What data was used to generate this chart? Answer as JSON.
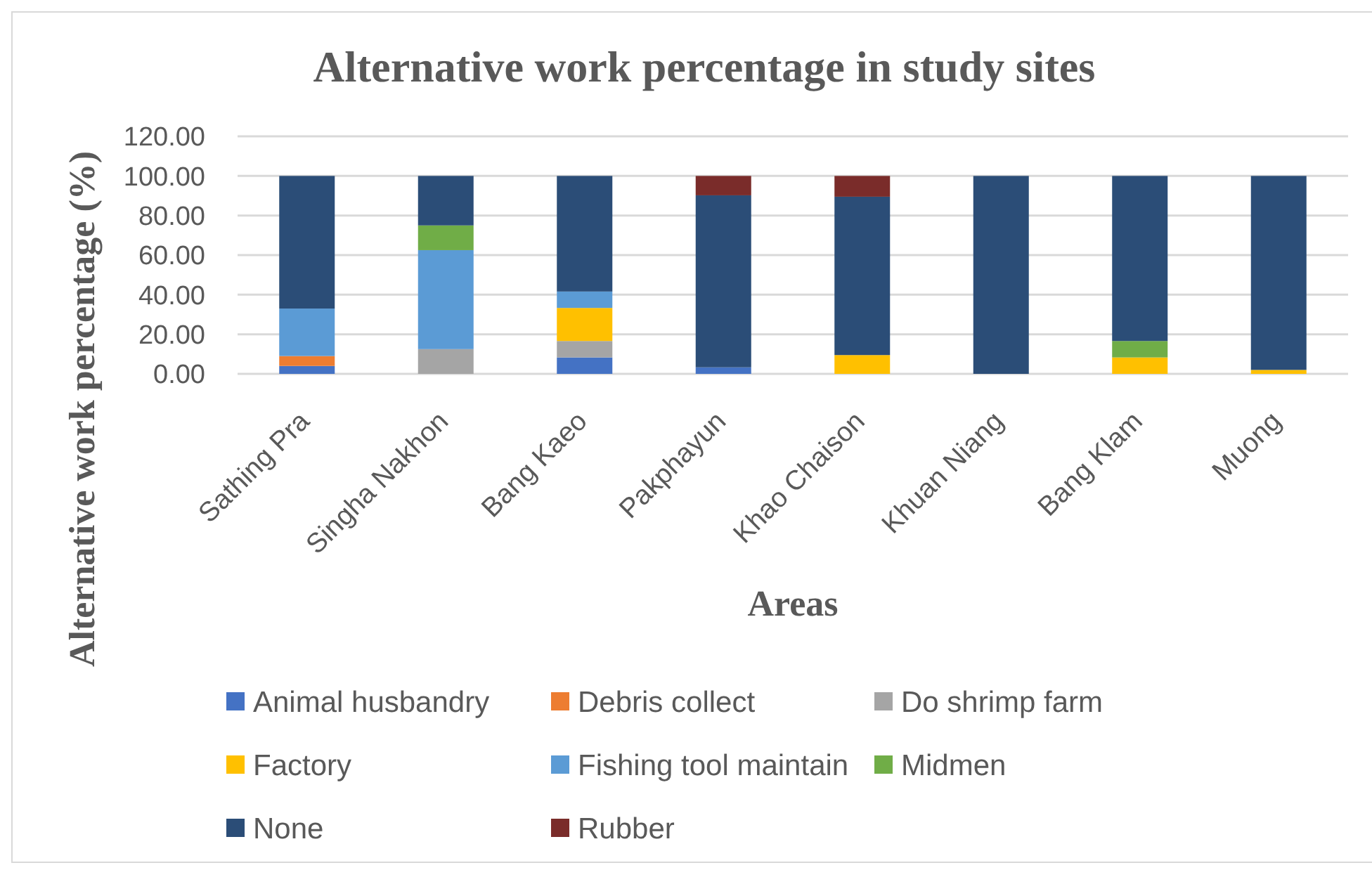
{
  "chart_data": {
    "type": "bar",
    "title": "Alternative work percentage in study sites",
    "xlabel": "Areas",
    "ylabel": "Alternative work percentage (%)",
    "categories": [
      "Sathing Pra",
      "Singha Nakhon",
      "Bang Kaeo",
      "Pakphayun",
      "Khao Chaison",
      "Khuan Niang",
      "Bang Klam",
      "Muong"
    ],
    "series": [
      {
        "name": "Animal husbandry",
        "color": "#4472c4",
        "values": [
          4,
          0,
          8.3,
          3.3,
          0,
          0,
          0,
          0
        ]
      },
      {
        "name": "Debris collect",
        "color": "#ed7d31",
        "values": [
          5,
          0,
          0,
          0,
          0,
          0,
          0,
          0
        ]
      },
      {
        "name": "Do shrimp farm",
        "color": "#a5a5a5",
        "values": [
          0,
          12.5,
          8.3,
          0,
          0,
          0,
          0,
          0
        ]
      },
      {
        "name": "Factory",
        "color": "#ffc000",
        "values": [
          0,
          0,
          16.7,
          0,
          9.5,
          0,
          8.3,
          2
        ]
      },
      {
        "name": "Fishing tool maintain",
        "color": "#5b9bd5",
        "values": [
          24,
          50,
          8.3,
          0,
          0,
          0,
          0,
          0
        ]
      },
      {
        "name": "Midmen",
        "color": "#70ad47",
        "values": [
          0,
          12.5,
          0,
          0,
          0,
          0,
          8.3,
          0
        ]
      },
      {
        "name": "None",
        "color": "#2b4d77",
        "values": [
          67,
          25,
          58.4,
          86.9,
          80,
          100,
          83.4,
          98
        ]
      },
      {
        "name": "Rubber",
        "color": "#7a2c2a",
        "values": [
          0,
          0,
          0,
          9.8,
          10.5,
          0,
          0,
          0
        ]
      }
    ],
    "stacked": true,
    "ylim": [
      0,
      120
    ],
    "yticks": [
      {
        "value": 0,
        "label": "0.00"
      },
      {
        "value": 20,
        "label": "20.00"
      },
      {
        "value": 40,
        "label": "40.00"
      },
      {
        "value": 60,
        "label": "60.00"
      },
      {
        "value": 80,
        "label": "80.00"
      },
      {
        "value": 100,
        "label": "100.00"
      },
      {
        "value": 120,
        "label": "120.00"
      }
    ],
    "grid": "y",
    "legend": "bottom"
  }
}
